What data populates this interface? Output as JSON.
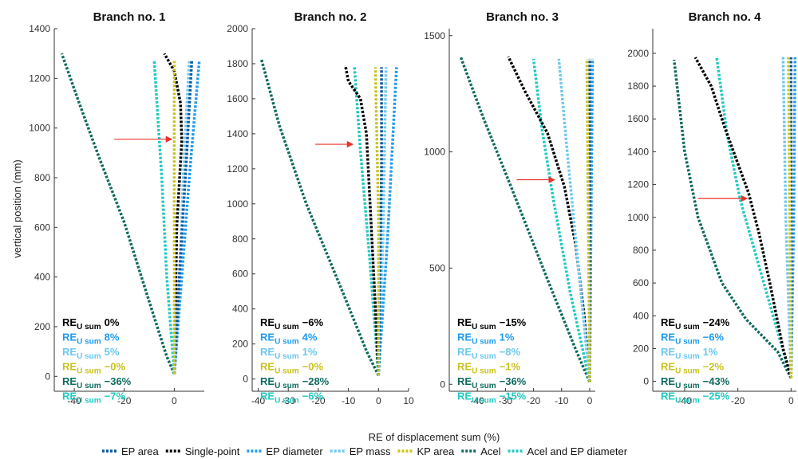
{
  "figure": {
    "ylabel": "vertical position (mm)",
    "xlabel": "RE of displacement sum (%)",
    "re_label_main": "RE",
    "re_label_sub": "U sum"
  },
  "legend": [
    {
      "key": "ep_area",
      "label": "EP area",
      "color": "#0a5a9c"
    },
    {
      "key": "single_point",
      "label": "Single-point",
      "color": "#000000"
    },
    {
      "key": "ep_diameter",
      "label": "EP diameter",
      "color": "#1e9bf0"
    },
    {
      "key": "ep_mass",
      "label": "EP mass",
      "color": "#6cc8f0"
    },
    {
      "key": "kp_area",
      "label": "KP area",
      "color": "#c9c21c"
    },
    {
      "key": "acel",
      "label": "Acel",
      "color": "#0e6b5f"
    },
    {
      "key": "acel_ep_diameter",
      "label": "Acel and EP diameter",
      "color": "#1fc9c0"
    }
  ],
  "chart_data": [
    {
      "type": "line",
      "title": "Branch no. 1",
      "xlim": [
        -48,
        12
      ],
      "ylim": [
        -60,
        1400
      ],
      "xticks": [
        -40,
        -20,
        0
      ],
      "xtick_labels": [
        "-40",
        "-20",
        "0"
      ],
      "yticks": [
        0,
        200,
        400,
        600,
        800,
        1000,
        1200,
        1400
      ],
      "ytick_labels": [
        "0",
        "200",
        "400",
        "600",
        "800",
        "1000",
        "1200",
        "1400"
      ],
      "annotation": {
        "type": "arrow",
        "from": [
          -24,
          955
        ],
        "to": [
          -1,
          955
        ]
      },
      "series": [
        {
          "key": "ep_area",
          "points": [
            [
              0,
              10
            ],
            [
              2,
              400
            ],
            [
              5,
              900
            ],
            [
              7,
              1270
            ]
          ]
        },
        {
          "key": "single_point",
          "points": [
            [
              0,
              10
            ],
            [
              0.5,
              300
            ],
            [
              1,
              600
            ],
            [
              3,
              950
            ],
            [
              2.5,
              1100
            ],
            [
              0,
              1230
            ],
            [
              -4,
              1300
            ]
          ]
        },
        {
          "key": "ep_diameter",
          "points": [
            [
              0,
              10
            ],
            [
              3,
              400
            ],
            [
              6,
              800
            ],
            [
              10,
              1270
            ]
          ]
        },
        {
          "key": "ep_mass",
          "points": [
            [
              0,
              10
            ],
            [
              2,
              400
            ],
            [
              4,
              900
            ],
            [
              6,
              1270
            ]
          ]
        },
        {
          "key": "kp_area",
          "points": [
            [
              0,
              10
            ],
            [
              0,
              600
            ],
            [
              0,
              1270
            ]
          ]
        },
        {
          "key": "acel",
          "points": [
            [
              0,
              10
            ],
            [
              -3,
              80
            ],
            [
              -10,
              300
            ],
            [
              -20,
              620
            ],
            [
              -30,
              880
            ],
            [
              -38,
              1100
            ],
            [
              -45,
              1300
            ]
          ]
        },
        {
          "key": "acel_ep_diameter",
          "points": [
            [
              0,
              10
            ],
            [
              -3,
              400
            ],
            [
              -5,
              800
            ],
            [
              -8,
              1270
            ]
          ]
        }
      ],
      "re_values": [
        {
          "key": "single_point",
          "text": "0%"
        },
        {
          "key": "ep_diameter",
          "text": "8%"
        },
        {
          "key": "ep_mass",
          "text": "5%"
        },
        {
          "key": "kp_area",
          "text": "−0%"
        },
        {
          "key": "acel",
          "text": "−36%"
        },
        {
          "key": "acel_ep_diameter",
          "text": "−7%"
        }
      ]
    },
    {
      "type": "line",
      "title": "Branch no. 2",
      "xlim": [
        -42,
        10
      ],
      "ylim": [
        -70,
        2000
      ],
      "xticks": [
        -40,
        -30,
        -20,
        -10,
        0,
        10
      ],
      "xtick_labels": [
        "-40",
        "-30",
        "-20",
        "-10",
        "0",
        "10"
      ],
      "yticks": [
        0,
        200,
        400,
        600,
        800,
        1000,
        1200,
        1400,
        1600,
        1800,
        2000
      ],
      "ytick_labels": [
        "0",
        "200",
        "400",
        "600",
        "800",
        "1000",
        "1200",
        "1400",
        "1600",
        "1800",
        "2000"
      ],
      "annotation": {
        "type": "arrow",
        "from": [
          -21,
          1340
        ],
        "to": [
          -8.5,
          1340
        ]
      },
      "series": [
        {
          "key": "ep_area",
          "points": [
            [
              0,
              20
            ],
            [
              0.5,
              600
            ],
            [
              1,
              1200
            ],
            [
              1,
              1780
            ]
          ]
        },
        {
          "key": "single_point",
          "points": [
            [
              0,
              20
            ],
            [
              -1,
              400
            ],
            [
              -2.5,
              900
            ],
            [
              -4,
              1400
            ],
            [
              -6,
              1600
            ],
            [
              -10,
              1700
            ],
            [
              -11,
              1790
            ]
          ]
        },
        {
          "key": "ep_diameter",
          "points": [
            [
              0,
              20
            ],
            [
              3,
              800
            ],
            [
              6,
              1780
            ]
          ]
        },
        {
          "key": "ep_mass",
          "points": [
            [
              0,
              20
            ],
            [
              1.5,
              800
            ],
            [
              2.5,
              1780
            ]
          ]
        },
        {
          "key": "kp_area",
          "points": [
            [
              0,
              20
            ],
            [
              0,
              900
            ],
            [
              -1,
              1780
            ]
          ]
        },
        {
          "key": "acel",
          "points": [
            [
              0,
              20
            ],
            [
              -4,
              160
            ],
            [
              -12,
              500
            ],
            [
              -24,
              1000
            ],
            [
              -33,
              1450
            ],
            [
              -39,
              1830
            ]
          ]
        },
        {
          "key": "acel_ep_diameter",
          "points": [
            [
              0,
              20
            ],
            [
              -3,
              700
            ],
            [
              -6,
              1300
            ],
            [
              -8,
              1780
            ]
          ]
        }
      ],
      "re_values": [
        {
          "key": "single_point",
          "text": "−6%"
        },
        {
          "key": "ep_diameter",
          "text": "4%"
        },
        {
          "key": "ep_mass",
          "text": "1%"
        },
        {
          "key": "kp_area",
          "text": "−0%"
        },
        {
          "key": "acel",
          "text": "−28%"
        },
        {
          "key": "acel_ep_diameter",
          "text": "−6%"
        }
      ]
    },
    {
      "type": "line",
      "title": "Branch no. 3",
      "xlim": [
        -50,
        2
      ],
      "ylim": [
        -30,
        1530
      ],
      "xticks": [
        -40,
        -30,
        -20,
        -10,
        0
      ],
      "xtick_labels": [
        "-40",
        "-30",
        "-20",
        "-10",
        "0"
      ],
      "yticks": [
        0,
        500,
        1000,
        1500
      ],
      "ytick_labels": [
        "0",
        "500",
        "1000",
        "1500"
      ],
      "annotation": {
        "type": "arrow",
        "from": [
          -26,
          880
        ],
        "to": [
          -12.5,
          880
        ]
      },
      "series": [
        {
          "key": "ep_area",
          "points": [
            [
              0,
              10
            ],
            [
              0,
              700
            ],
            [
              0,
              1400
            ]
          ]
        },
        {
          "key": "single_point",
          "points": [
            [
              0,
              10
            ],
            [
              -2,
              300
            ],
            [
              -5,
              600
            ],
            [
              -9,
              850
            ],
            [
              -15,
              1080
            ],
            [
              -23,
              1260
            ],
            [
              -29,
              1410
            ]
          ]
        },
        {
          "key": "ep_diameter",
          "points": [
            [
              0,
              10
            ],
            [
              0.5,
              700
            ],
            [
              1,
              1400
            ]
          ]
        },
        {
          "key": "ep_mass",
          "points": [
            [
              0,
              10
            ],
            [
              -4,
              500
            ],
            [
              -8,
              1000
            ],
            [
              -11,
              1400
            ]
          ]
        },
        {
          "key": "kp_area",
          "points": [
            [
              0,
              10
            ],
            [
              -0.5,
              700
            ],
            [
              -1,
              1400
            ]
          ]
        },
        {
          "key": "acel",
          "points": [
            [
              0,
              10
            ],
            [
              -5,
              150
            ],
            [
              -15,
              450
            ],
            [
              -28,
              850
            ],
            [
              -38,
              1150
            ],
            [
              -46,
              1410
            ]
          ]
        },
        {
          "key": "acel_ep_diameter",
          "points": [
            [
              0,
              10
            ],
            [
              -7,
              400
            ],
            [
              -13,
              800
            ],
            [
              -17,
              1100
            ],
            [
              -20,
              1400
            ]
          ]
        }
      ],
      "re_values": [
        {
          "key": "single_point",
          "text": "−15%"
        },
        {
          "key": "ep_diameter",
          "text": "1%"
        },
        {
          "key": "ep_mass",
          "text": "−8%"
        },
        {
          "key": "kp_area",
          "text": "−1%"
        },
        {
          "key": "acel",
          "text": "−36%"
        },
        {
          "key": "acel_ep_diameter",
          "text": "−15%"
        }
      ]
    },
    {
      "type": "line",
      "title": "Branch no. 4",
      "xlim": [
        -52,
        2
      ],
      "ylim": [
        -60,
        2150
      ],
      "xticks": [
        -40,
        -20,
        0
      ],
      "xtick_labels": [
        "-40",
        "-20",
        "0"
      ],
      "yticks": [
        0,
        200,
        400,
        600,
        800,
        1000,
        1200,
        1400,
        1600,
        1800,
        2000
      ],
      "ytick_labels": [
        "0",
        "200",
        "400",
        "600",
        "800",
        "1000",
        "1200",
        "1400",
        "1600",
        "1800",
        "2000"
      ],
      "annotation": {
        "type": "arrow",
        "from": [
          -35,
          1115
        ],
        "to": [
          -16.5,
          1115
        ]
      },
      "series": [
        {
          "key": "ep_area",
          "points": [
            [
              0,
              20
            ],
            [
              0,
              1000
            ],
            [
              0,
              1975
            ]
          ]
        },
        {
          "key": "single_point",
          "points": [
            [
              0,
              20
            ],
            [
              -3,
              200
            ],
            [
              -8,
              600
            ],
            [
              -12,
              900
            ],
            [
              -16,
              1150
            ],
            [
              -25,
              1550
            ],
            [
              -30,
              1800
            ],
            [
              -36,
              1975
            ]
          ]
        },
        {
          "key": "ep_diameter",
          "points": [
            [
              0,
              20
            ],
            [
              1,
              1000
            ],
            [
              1.5,
              1975
            ]
          ]
        },
        {
          "key": "ep_mass",
          "points": [
            [
              0,
              20
            ],
            [
              -2,
              1000
            ],
            [
              -3,
              1985
            ]
          ]
        },
        {
          "key": "kp_area",
          "points": [
            [
              0,
              20
            ],
            [
              -0.5,
              1000
            ],
            [
              -1,
              1975
            ]
          ]
        },
        {
          "key": "acel",
          "points": [
            [
              0,
              20
            ],
            [
              -5,
              180
            ],
            [
              -17,
              380
            ],
            [
              -26,
              600
            ],
            [
              -35,
              1000
            ],
            [
              -40,
              1400
            ],
            [
              -44,
              1960
            ]
          ]
        },
        {
          "key": "acel_ep_diameter",
          "points": [
            [
              0,
              20
            ],
            [
              -5,
              300
            ],
            [
              -12,
              700
            ],
            [
              -19,
              1100
            ],
            [
              -24,
              1500
            ],
            [
              -28,
              1980
            ]
          ]
        }
      ],
      "re_values": [
        {
          "key": "single_point",
          "text": "−24%"
        },
        {
          "key": "ep_diameter",
          "text": "−6%"
        },
        {
          "key": "ep_mass",
          "text": "1%"
        },
        {
          "key": "kp_area",
          "text": "−2%"
        },
        {
          "key": "acel",
          "text": "−43%"
        },
        {
          "key": "acel_ep_diameter",
          "text": "−25%"
        }
      ]
    }
  ]
}
